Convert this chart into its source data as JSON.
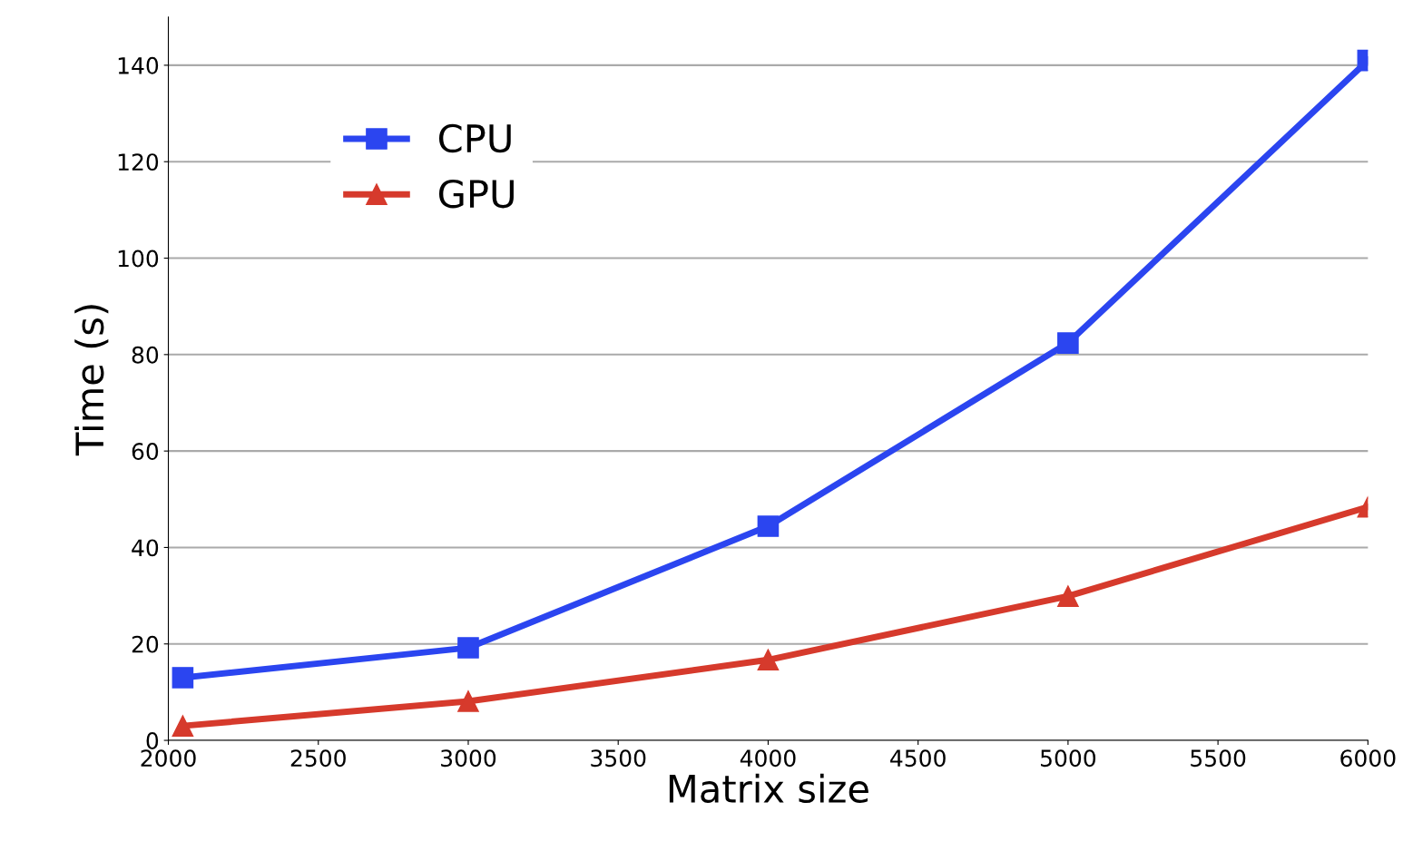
{
  "chart_data": {
    "type": "line",
    "xlabel": "Matrix size",
    "ylabel": "Time (s)",
    "x": [
      2048,
      3000,
      4000,
      5000,
      6000
    ],
    "series": [
      {
        "name": "CPU",
        "color": "#2b45f0",
        "marker": "square",
        "values": [
          13.0,
          19.2,
          44.4,
          82.4,
          141
        ]
      },
      {
        "name": "GPU",
        "color": "#d63a2c",
        "marker": "triangle",
        "values": [
          3.0,
          8.1,
          16.7,
          29.9,
          48.4
        ]
      }
    ],
    "xlim": [
      2000,
      6000
    ],
    "xticks": [
      2000,
      2500,
      3000,
      3500,
      4000,
      4500,
      5000,
      5500,
      6000
    ],
    "ylim": [
      0,
      150
    ],
    "yticks": [
      0,
      20,
      40,
      60,
      80,
      100,
      120,
      140
    ],
    "grid": "y",
    "legend": "top left",
    "line_style": "solid"
  }
}
